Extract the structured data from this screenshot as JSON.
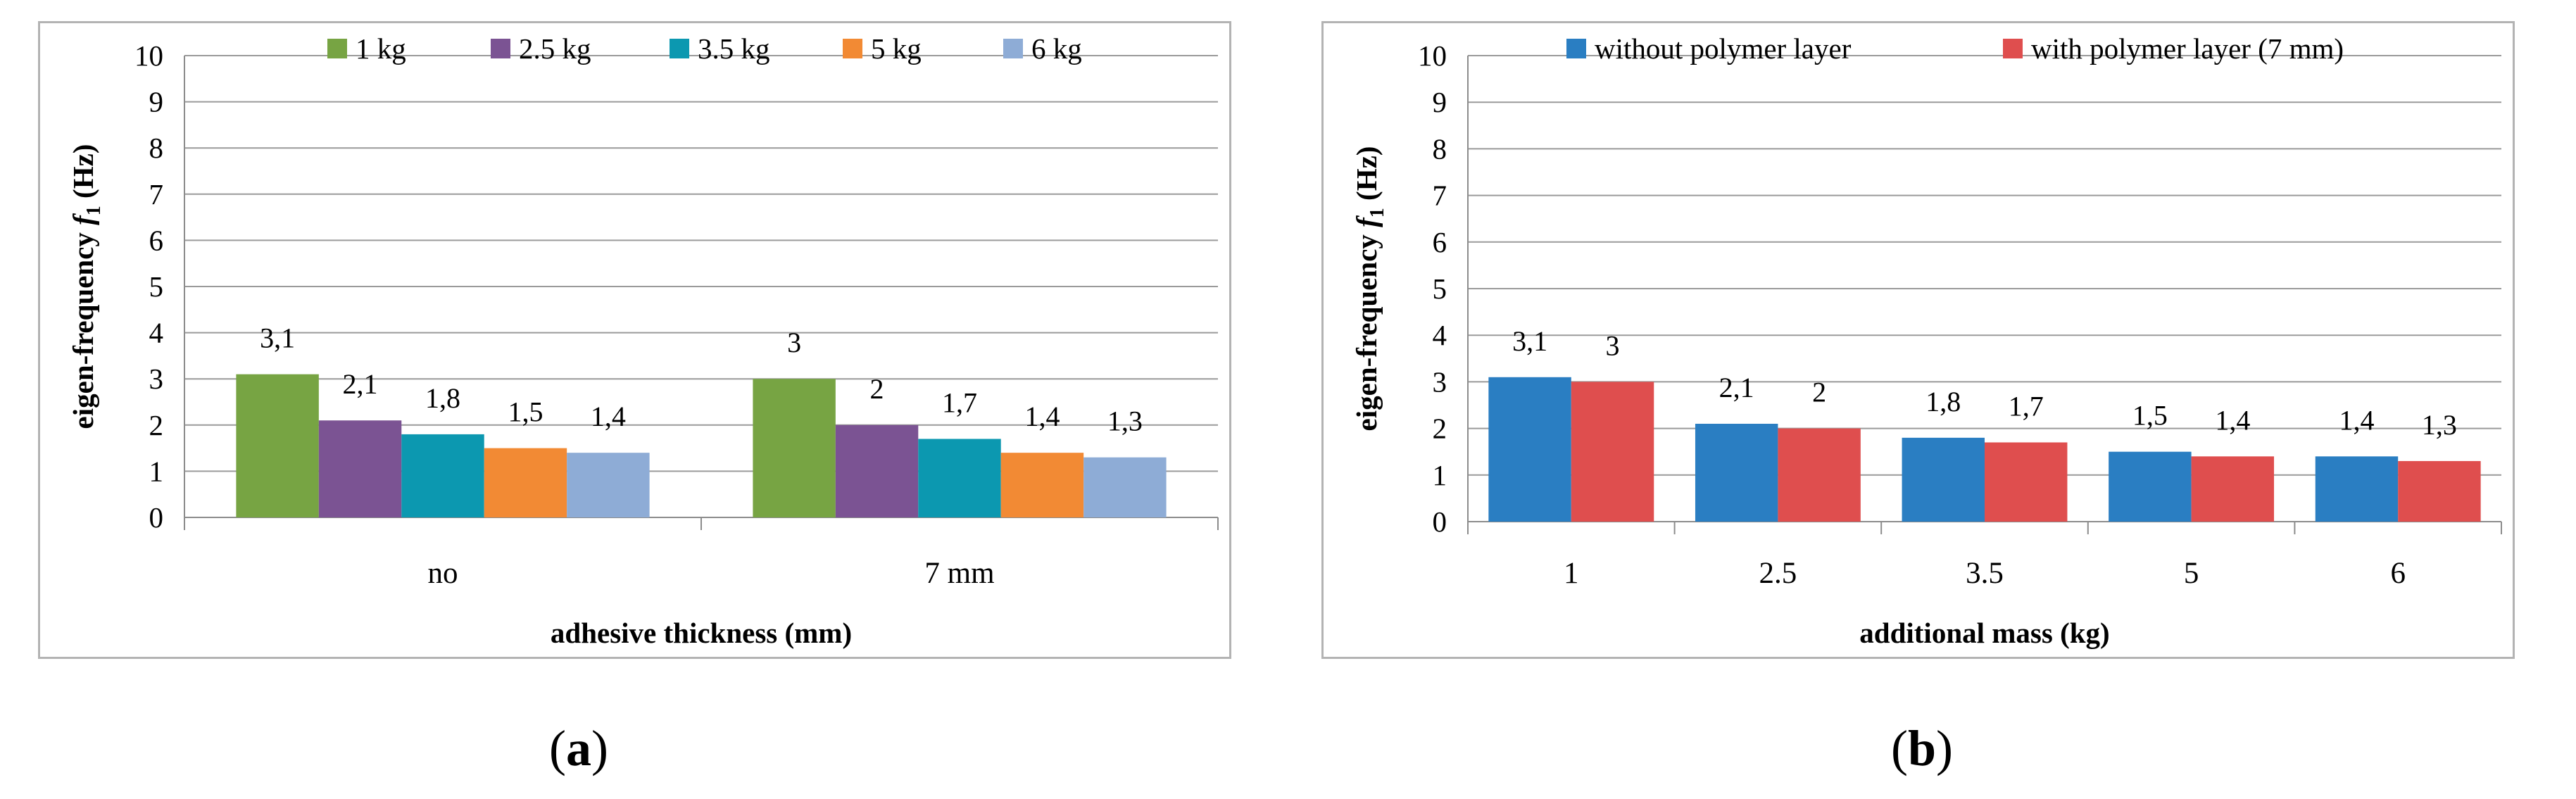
{
  "chart_data": [
    {
      "type": "bar",
      "panel": "a",
      "title": "",
      "xlabel": "adhesive thickness (mm)",
      "ylabel": "eigen-frequency f1 (Hz)",
      "ylabel_main": "eigen-frequency ",
      "ylabel_italic": "f",
      "ylabel_sub": "1",
      "ylabel_unit": " (Hz)",
      "ylim": [
        0,
        10
      ],
      "yticks": [
        "0",
        "1",
        "2",
        "3",
        "4",
        "5",
        "6",
        "7",
        "8",
        "9",
        "10"
      ],
      "grid": true,
      "legend_position": "top",
      "categories": [
        "no",
        "7 mm"
      ],
      "series": [
        {
          "name": "1 kg",
          "color": "#77a443",
          "values": [
            3.1,
            3
          ],
          "labels": [
            "3,1",
            "3"
          ]
        },
        {
          "name": "2.5 kg",
          "color": "#7b5393",
          "values": [
            2.1,
            2
          ],
          "labels": [
            "2,1",
            "2"
          ]
        },
        {
          "name": "3.5 kg",
          "color": "#0c98b0",
          "values": [
            1.8,
            1.7
          ],
          "labels": [
            "1,8",
            "1,7"
          ]
        },
        {
          "name": "5 kg",
          "color": "#f28a34",
          "values": [
            1.5,
            1.4
          ],
          "labels": [
            "1,5",
            "1,4"
          ]
        },
        {
          "name": "6 kg",
          "color": "#8eacd6",
          "values": [
            1.4,
            1.3
          ],
          "labels": [
            "1,4",
            "1,3"
          ]
        }
      ]
    },
    {
      "type": "bar",
      "panel": "b",
      "title": "",
      "xlabel": "additional mass (kg)",
      "ylabel": "eigen-frequency f1 (Hz)",
      "ylabel_main": "eigen-frequency ",
      "ylabel_italic": "f",
      "ylabel_sub": "1",
      "ylabel_unit": " (Hz)",
      "ylim": [
        0,
        10
      ],
      "yticks": [
        "0",
        "1",
        "2",
        "3",
        "4",
        "5",
        "6",
        "7",
        "8",
        "9",
        "10"
      ],
      "grid": true,
      "legend_position": "top",
      "categories": [
        "1",
        "2.5",
        "3.5",
        "5",
        "6"
      ],
      "series": [
        {
          "name": "without polymer layer",
          "color": "#2a7ec2",
          "values": [
            3.1,
            2.1,
            1.8,
            1.5,
            1.4
          ],
          "labels": [
            "3,1",
            "2,1",
            "1,8",
            "1,5",
            "1,4"
          ]
        },
        {
          "name": "with polymer layer (7 mm)",
          "color": "#df4e4e",
          "values": [
            3,
            2,
            1.7,
            1.4,
            1.3
          ],
          "labels": [
            "3",
            "2",
            "1,7",
            "1,4",
            "1,3"
          ]
        }
      ]
    }
  ],
  "captions": {
    "a": {
      "open": "(",
      "letter": "a",
      "close": ")"
    },
    "b": {
      "open": "(",
      "letter": "b",
      "close": ")"
    }
  }
}
